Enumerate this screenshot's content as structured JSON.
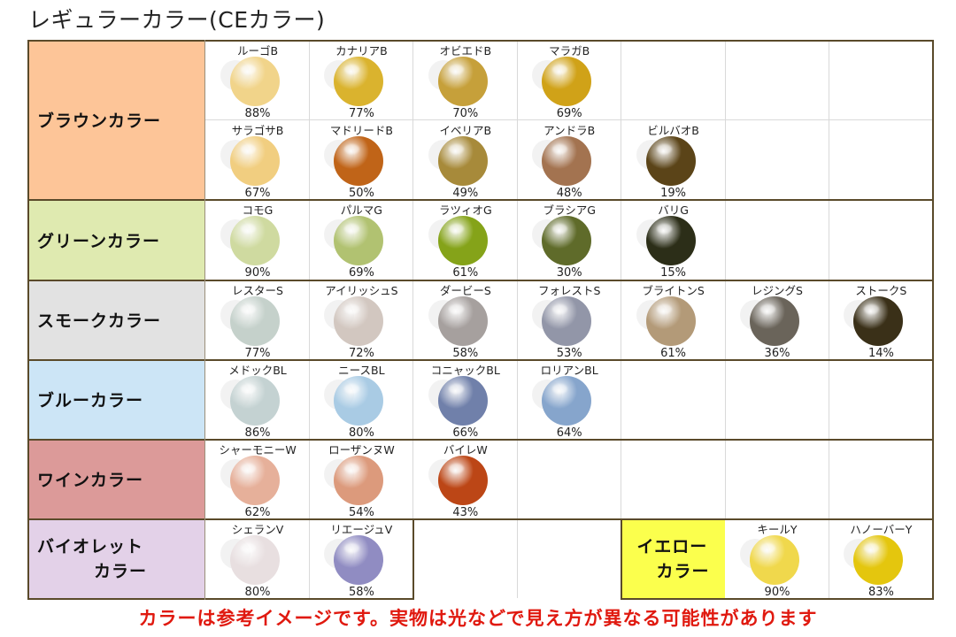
{
  "title": "レギュラーカラー(CEカラー)",
  "note": "カラーは参考イメージです。実物は光などで見え方が異なる可能性があります",
  "categories": {
    "brown": {
      "label": "ブラウンカラー",
      "color": "#fdc598"
    },
    "green": {
      "label": "グリーンカラー",
      "color": "#dfeab0"
    },
    "smoke": {
      "label": "スモークカラー",
      "color": "#e2e2e2"
    },
    "blue": {
      "label": "ブルーカラー",
      "color": "#cce5f6"
    },
    "wine": {
      "label": "ワインカラー",
      "color": "#dc9a99"
    },
    "violet": {
      "line1": "バイオレット",
      "line2": "カラー",
      "color": "#e3d1e8"
    },
    "yellow": {
      "line1": "イエロー",
      "line2": "カラー",
      "color": "#fbff4d"
    }
  },
  "lenses": {
    "brown1": [
      {
        "name": "ルーゴB",
        "pct": "88%",
        "color": "#f1d48a"
      },
      {
        "name": "カナリアB",
        "pct": "77%",
        "color": "#dab32e"
      },
      {
        "name": "オビエドB",
        "pct": "70%",
        "color": "#c6a03a"
      },
      {
        "name": "マラガB",
        "pct": "69%",
        "color": "#d0a218"
      }
    ],
    "brown2": [
      {
        "name": "サラゴサB",
        "pct": "67%",
        "color": "#f1ce80"
      },
      {
        "name": "マドリードB",
        "pct": "50%",
        "color": "#c06418"
      },
      {
        "name": "イベリアB",
        "pct": "49%",
        "color": "#a78a3a"
      },
      {
        "name": "アンドラB",
        "pct": "48%",
        "color": "#a37350"
      },
      {
        "name": "ビルバオB",
        "pct": "19%",
        "color": "#5b4418"
      }
    ],
    "green": [
      {
        "name": "コモG",
        "pct": "90%",
        "color": "#cfdaa0"
      },
      {
        "name": "パルマG",
        "pct": "69%",
        "color": "#b1c271"
      },
      {
        "name": "ラツィオG",
        "pct": "61%",
        "color": "#85a319"
      },
      {
        "name": "ブラシアG",
        "pct": "30%",
        "color": "#5f6b2a"
      },
      {
        "name": "バリG",
        "pct": "15%",
        "color": "#2c2e18"
      }
    ],
    "smoke": [
      {
        "name": "レスターS",
        "pct": "77%",
        "color": "#c5d1cb"
      },
      {
        "name": "アイリッシュS",
        "pct": "72%",
        "color": "#d2c7c0"
      },
      {
        "name": "ダービーS",
        "pct": "58%",
        "color": "#a6a09e"
      },
      {
        "name": "フォレストS",
        "pct": "53%",
        "color": "#9296a8"
      },
      {
        "name": "ブライトンS",
        "pct": "61%",
        "color": "#b39a78"
      },
      {
        "name": "レジングS",
        "pct": "36%",
        "color": "#6a645a"
      },
      {
        "name": "ストークS",
        "pct": "14%",
        "color": "#3a3018"
      }
    ],
    "blue": [
      {
        "name": "メドックBL",
        "pct": "86%",
        "color": "#c4d2d2"
      },
      {
        "name": "ニースBL",
        "pct": "80%",
        "color": "#a9cbe4"
      },
      {
        "name": "コニャックBL",
        "pct": "66%",
        "color": "#7080aa"
      },
      {
        "name": "ロリアンBL",
        "pct": "64%",
        "color": "#86a5cc"
      }
    ],
    "wine": [
      {
        "name": "シャーモニーW",
        "pct": "62%",
        "color": "#e6b09a"
      },
      {
        "name": "ローザンヌW",
        "pct": "54%",
        "color": "#dc9a7c"
      },
      {
        "name": "バイレW",
        "pct": "43%",
        "color": "#bc4616"
      }
    ],
    "violet": [
      {
        "name": "シェランV",
        "pct": "80%",
        "color": "#e8dfe0"
      },
      {
        "name": "リエージュV",
        "pct": "58%",
        "color": "#908cc2"
      }
    ],
    "yellow": [
      {
        "name": "キールY",
        "pct": "90%",
        "color": "#f0d84c"
      },
      {
        "name": "ハノーバーY",
        "pct": "83%",
        "color": "#e4c60e"
      }
    ]
  }
}
